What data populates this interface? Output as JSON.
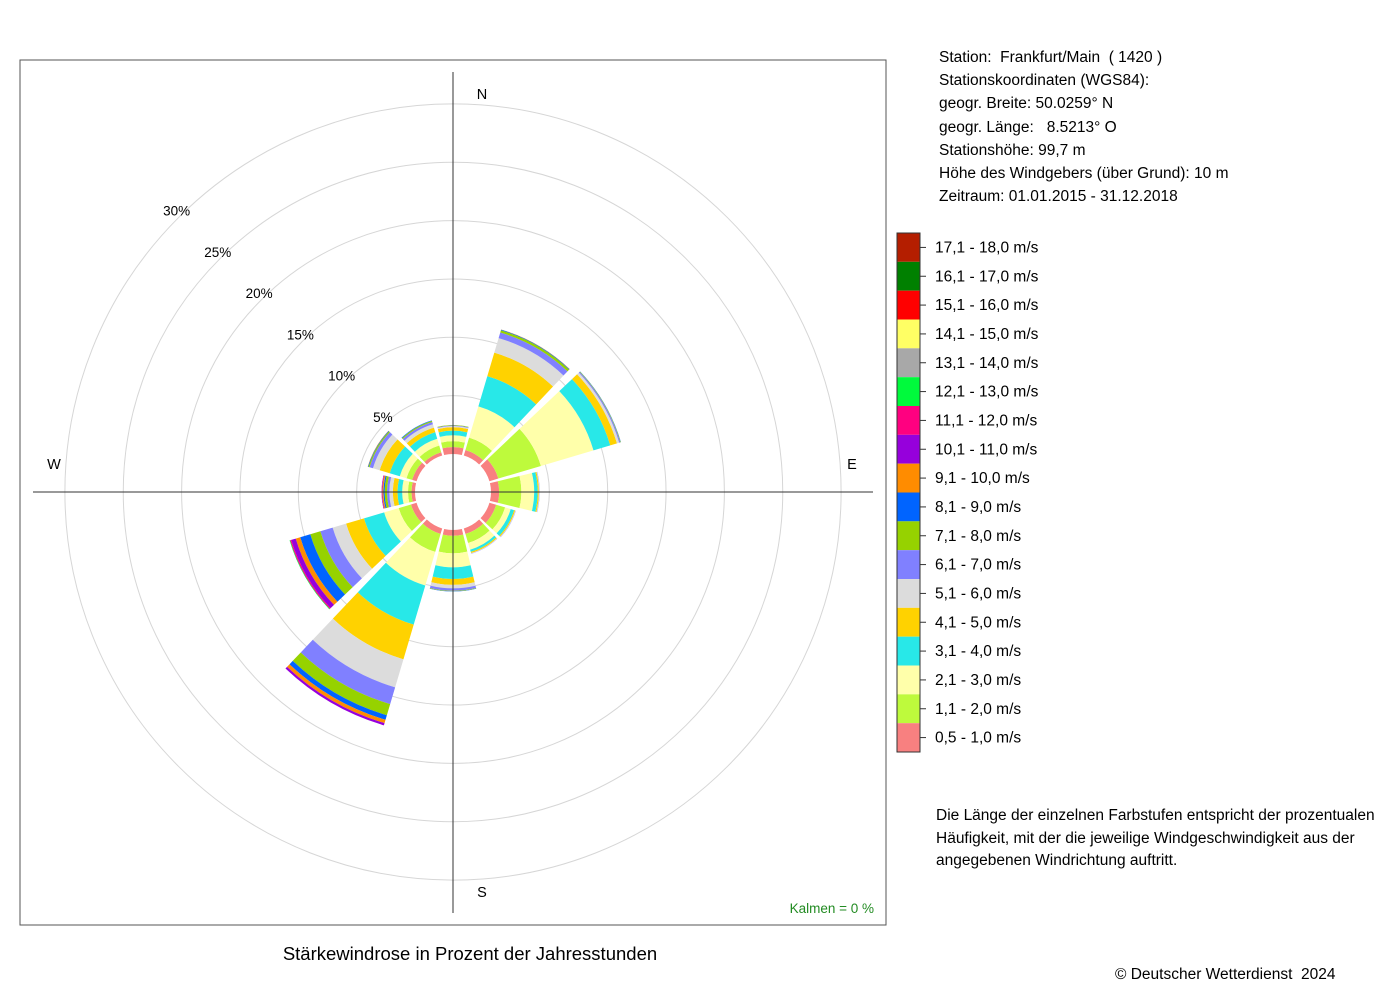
{
  "title": "Stärkewindrose in Prozent der Jahresstunden",
  "station": {
    "line1": "Station:  Frankfurt/Main  ( 1420 )",
    "line2": "Stationskoordinaten (WGS84):",
    "line3": "geogr. Breite: 50.0259° N",
    "line4": "geogr. Länge:   8.5213° O",
    "line5": "Stationshöhe: 99,7 m",
    "line6": "Höhe des Windgebers (über Grund): 10 m",
    "line7": "Zeitraum: 01.01.2015 - 31.12.2018"
  },
  "note": {
    "line1": "Die Länge der einzelnen Farbstufen entspricht der prozentualen",
    "line2": "Häufigkeit, mit der die jeweilige Windgeschwindigkeit aus der",
    "line3": "angegebenen Windrichtung auftritt."
  },
  "copyright": "© Deutscher Wetterdienst  2024",
  "chart_data": {
    "type": "wind-rose",
    "unit": "%",
    "calm_label": "Kalmen  =  0 %",
    "compass": [
      "N",
      "E",
      "S",
      "W"
    ],
    "radial_ticks": [
      5,
      10,
      15,
      20,
      25,
      30
    ],
    "radial_tick_labels": [
      "5%",
      "10%",
      "15%",
      "20%",
      "25%",
      "30%"
    ],
    "rmax": 30,
    "sector_width_deg": 30,
    "directions_deg": [
      0,
      30,
      60,
      90,
      120,
      150,
      180,
      210,
      240,
      270,
      300,
      330
    ],
    "speed_classes": [
      {
        "label": "0,5 - 1,0 m/s",
        "color": "#F88080"
      },
      {
        "label": "1,1 - 2,0 m/s",
        "color": "#BEFA3C"
      },
      {
        "label": "2,1 - 3,0 m/s",
        "color": "#FFFFAA"
      },
      {
        "label": "3,1 - 4,0 m/s",
        "color": "#28E8E8"
      },
      {
        "label": "4,1 - 5,0 m/s",
        "color": "#FFD200"
      },
      {
        "label": "5,1 - 6,0 m/s",
        "color": "#DCDCDC"
      },
      {
        "label": "6,1 - 7,0 m/s",
        "color": "#8080FF"
      },
      {
        "label": "7,1 - 8,0 m/s",
        "color": "#96D200"
      },
      {
        "label": "8,1 - 9,0 m/s",
        "color": "#0064FF"
      },
      {
        "label": "9,1 - 10,0 m/s",
        "color": "#FF8C00"
      },
      {
        "label": "10,1 - 11,0 m/s",
        "color": "#9600DC"
      },
      {
        "label": "11,1 - 12,0 m/s",
        "color": "#FF0080"
      },
      {
        "label": "12,1 - 13,0 m/s",
        "color": "#00FA3C"
      },
      {
        "label": "13,1 - 14,0 m/s",
        "color": "#A8A8A8"
      },
      {
        "label": "14,1 - 15,0 m/s",
        "color": "#FFFF64"
      },
      {
        "label": "15,1 - 16,0 m/s",
        "color": "#FF0000"
      },
      {
        "label": "16,1 - 17,0 m/s",
        "color": "#008000"
      },
      {
        "label": "17,1 - 18,0 m/s",
        "color": "#B41E00"
      }
    ],
    "frequencies": [
      [
        0.6,
        0.5,
        0.5,
        0.4,
        0.3,
        0.1,
        0.05,
        0.03,
        0,
        0,
        0,
        0,
        0,
        0,
        0,
        0,
        0,
        0
      ],
      [
        0.5,
        1.1,
        2.8,
        2.7,
        2.1,
        1.3,
        0.5,
        0.2,
        0.05,
        0.02,
        0,
        0,
        0,
        0,
        0,
        0,
        0,
        0
      ],
      [
        0.8,
        3.8,
        4.7,
        1.5,
        0.6,
        0.2,
        0.1,
        0.04,
        0.02,
        0,
        0,
        0,
        0,
        0,
        0,
        0,
        0,
        0
      ],
      [
        0.7,
        1.9,
        1.1,
        0.3,
        0.1,
        0.05,
        0.02,
        0,
        0,
        0,
        0,
        0,
        0,
        0,
        0,
        0,
        0,
        0
      ],
      [
        0.6,
        0.8,
        0.5,
        0.3,
        0.1,
        0.05,
        0.02,
        0,
        0,
        0,
        0,
        0,
        0,
        0,
        0,
        0,
        0,
        0
      ],
      [
        0.5,
        0.8,
        0.6,
        0.2,
        0.1,
        0.05,
        0.02,
        0,
        0,
        0,
        0,
        0,
        0,
        0,
        0,
        0,
        0,
        0
      ],
      [
        0.5,
        1.5,
        1.2,
        1.0,
        0.5,
        0.3,
        0.2,
        0.05,
        0.02,
        0,
        0,
        0,
        0,
        0,
        0,
        0,
        0,
        0
      ],
      [
        0.5,
        1.6,
        3.0,
        3.5,
        3.1,
        2.5,
        1.5,
        1.0,
        0.4,
        0.3,
        0.2,
        0,
        0,
        0,
        0,
        0,
        0,
        0
      ],
      [
        0.5,
        1.1,
        1.3,
        1.8,
        1.6,
        1.2,
        1.1,
        0.9,
        0.9,
        0.4,
        0.4,
        0.1,
        0.05,
        0,
        0,
        0,
        0,
        0
      ],
      [
        0.3,
        0.3,
        0.5,
        0.4,
        0.4,
        0.3,
        0.2,
        0.2,
        0.1,
        0.1,
        0.05,
        0.02,
        0,
        0,
        0,
        0,
        0,
        0
      ],
      [
        0.4,
        0.5,
        0.6,
        0.9,
        0.9,
        0.6,
        0.3,
        0.1,
        0.05,
        0.02,
        0,
        0,
        0,
        0,
        0,
        0,
        0,
        0
      ],
      [
        0.3,
        0.6,
        0.6,
        0.6,
        0.4,
        0.3,
        0.2,
        0.1,
        0.05,
        0,
        0,
        0,
        0,
        0,
        0,
        0,
        0,
        0
      ]
    ]
  }
}
